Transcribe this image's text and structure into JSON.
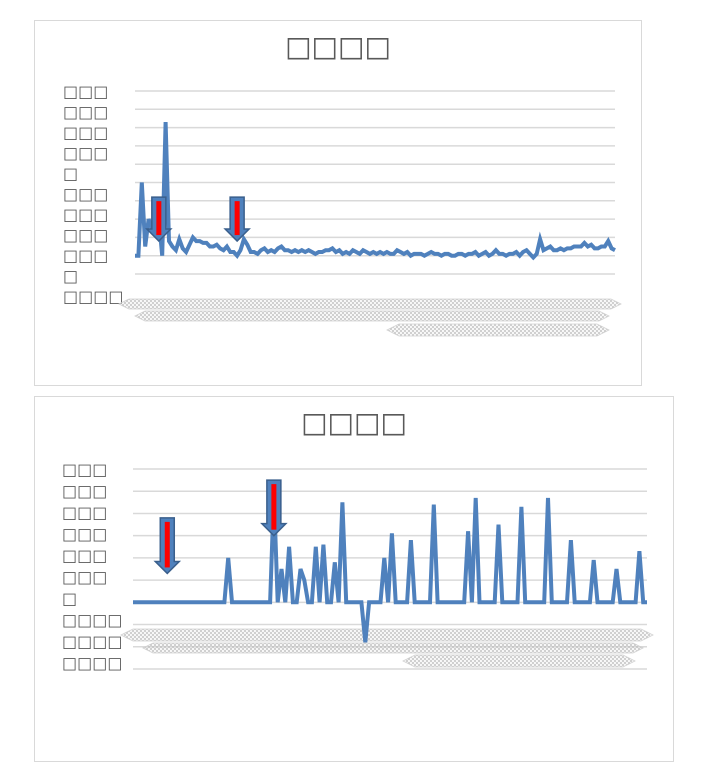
{
  "chart_data": [
    {
      "type": "line",
      "title": "□□□□",
      "ylabel_lines": [
        "□□□",
        "□□□",
        "□□□",
        "□□□",
        "□",
        "□□□",
        "□□□",
        "□□□",
        "□□□",
        "□",
        "□□□□"
      ],
      "xlabel": "",
      "grid": true,
      "ylim": [
        0,
        10
      ],
      "gridlines": 10,
      "line_color": "#4f81bd",
      "marker_color": "#ff0000",
      "series": [
        {
          "values": [
            1.0,
            1.0,
            5.0,
            1.5,
            3.0,
            2.5,
            2.2,
            3.0,
            1.0,
            8.3,
            1.8,
            1.5,
            1.3,
            1.9,
            1.4,
            1.2,
            1.6,
            2.0,
            1.8,
            1.8,
            1.7,
            1.7,
            1.5,
            1.5,
            1.6,
            1.4,
            1.3,
            1.5,
            1.2,
            1.2,
            1.0,
            1.3,
            1.9,
            1.6,
            1.2,
            1.2,
            1.1,
            1.3,
            1.4,
            1.2,
            1.3,
            1.2,
            1.4,
            1.5,
            1.3,
            1.3,
            1.2,
            1.3,
            1.2,
            1.3,
            1.2,
            1.3,
            1.2,
            1.1,
            1.2,
            1.2,
            1.3,
            1.3,
            1.4,
            1.2,
            1.3,
            1.1,
            1.2,
            1.1,
            1.3,
            1.2,
            1.1,
            1.3,
            1.2,
            1.1,
            1.2,
            1.1,
            1.2,
            1.1,
            1.2,
            1.1,
            1.1,
            1.3,
            1.2,
            1.1,
            1.2,
            1.0,
            1.1,
            1.1,
            1.1,
            1.0,
            1.1,
            1.2,
            1.1,
            1.1,
            1.0,
            1.1,
            1.1,
            1.0,
            1.0,
            1.1,
            1.1,
            1.0,
            1.1,
            1.1,
            1.2,
            1.0,
            1.1,
            1.2,
            1.0,
            1.1,
            1.3,
            1.1,
            1.1,
            1.0,
            1.1,
            1.1,
            1.2,
            1.0,
            1.2,
            1.3,
            1.1,
            0.9,
            1.1,
            1.9,
            1.3,
            1.4,
            1.5,
            1.3,
            1.3,
            1.4,
            1.3,
            1.4,
            1.4,
            1.5,
            1.5,
            1.5,
            1.7,
            1.5,
            1.6,
            1.4,
            1.4,
            1.5,
            1.5,
            1.8,
            1.4,
            1.3
          ]
        }
      ],
      "markers": [
        {
          "index": 7,
          "value": 2.2
        },
        {
          "index": 30,
          "value": 2.2
        }
      ]
    },
    {
      "type": "line",
      "title": "□□□□",
      "ylabel_lines": [
        "□□□",
        "□□□",
        "□□□",
        "□□□",
        "□□□",
        "□□□",
        "□",
        "□□□□",
        "□□□□",
        "□□□□"
      ],
      "xlabel": "",
      "grid": true,
      "ylim": [
        -3,
        6
      ],
      "gridlines": 9,
      "line_color": "#4f81bd",
      "marker_color": "#ff0000",
      "series": [
        {
          "values": [
            0,
            0,
            0,
            0,
            0,
            0,
            0,
            0,
            0,
            0,
            0,
            0,
            0,
            0,
            0,
            0,
            0,
            0,
            0,
            0,
            0,
            0,
            0,
            0,
            0,
            2.0,
            0,
            0,
            0,
            0,
            0,
            0,
            0,
            0,
            0,
            0,
            0,
            4.9,
            0,
            1.5,
            0,
            2.5,
            0,
            0,
            1.5,
            1.0,
            0,
            0,
            2.5,
            0,
            2.6,
            0,
            0,
            1.8,
            0,
            4.5,
            0,
            0,
            0,
            0,
            0,
            -1.8,
            0,
            0,
            0,
            0,
            2.0,
            0,
            3.1,
            0,
            0,
            0,
            0,
            2.8,
            0,
            0,
            0,
            0,
            0,
            4.4,
            0,
            0,
            0,
            0,
            0,
            0,
            0,
            0,
            3.2,
            0,
            4.7,
            0,
            0,
            0,
            0,
            0,
            3.5,
            0,
            0,
            0,
            0,
            0,
            4.3,
            0,
            0,
            0,
            0,
            0,
            0,
            4.7,
            0,
            0,
            0,
            0,
            0,
            2.8,
            0,
            0,
            0,
            0,
            0,
            1.9,
            0,
            0,
            0,
            0,
            0,
            1.5,
            0,
            0,
            0,
            0,
            0,
            2.3,
            0,
            0
          ]
        }
      ],
      "markers": [
        {
          "index": 9,
          "value": 1.7
        },
        {
          "index": 37,
          "value": 3.4
        }
      ]
    }
  ]
}
